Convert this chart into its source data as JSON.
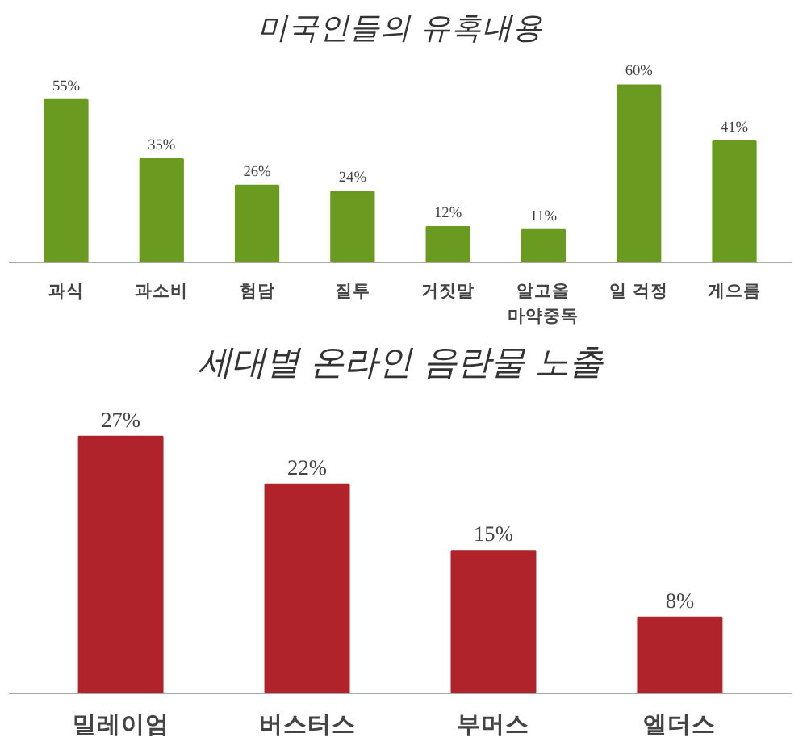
{
  "chart_data": [
    {
      "type": "bar",
      "title": "미국인들의 유혹내용",
      "categories": [
        "과식",
        "과소비",
        "험담",
        "질투",
        "거짓말",
        "알고올\n마약중독",
        "일 걱정",
        "게으름"
      ],
      "values": [
        55,
        35,
        26,
        24,
        12,
        11,
        60,
        41
      ],
      "value_labels": [
        "55%",
        "35%",
        "26%",
        "24%",
        "12%",
        "11%",
        "60%",
        "41%"
      ],
      "color": "#6a9a1f"
    },
    {
      "type": "bar",
      "title": "세대별 온라인 음란물 노출",
      "categories": [
        "밀레이엄",
        "버스터스",
        "부머스",
        "엘더스"
      ],
      "values": [
        27,
        22,
        15,
        8
      ],
      "value_labels": [
        "27%",
        "22%",
        "15%",
        "8%"
      ],
      "color": "#b0232a"
    }
  ]
}
